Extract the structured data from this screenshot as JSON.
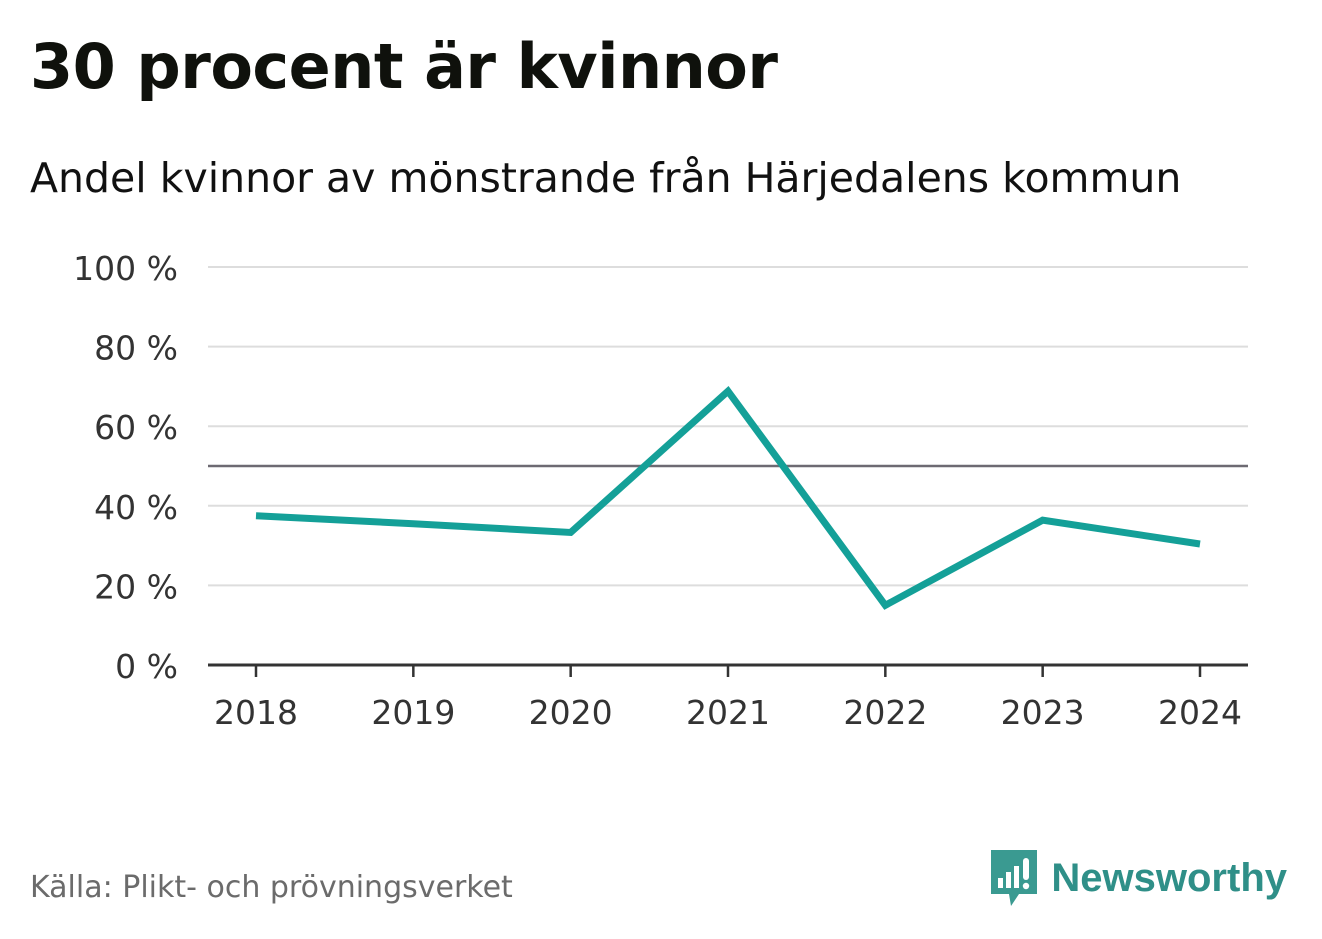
{
  "title": "30 procent är kvinnor",
  "subtitle": "Andel kvinnor av mönstrande från Härjedalens kommun",
  "source": "Källa: Plikt- och prövningsverket",
  "brand": {
    "name": "Newsworthy",
    "icon": "newsworthy-logo-icon",
    "color": "#2f8f88"
  },
  "colors": {
    "series": "#14a098",
    "reference_line": "#6d6a72",
    "grid": "#dddddd",
    "axis": "#333333"
  },
  "chart_data": {
    "type": "line",
    "x": [
      "2018",
      "2019",
      "2020",
      "2021",
      "2022",
      "2023",
      "2024"
    ],
    "series": [
      {
        "values": [
          37.5,
          35.5,
          33.3,
          68.8,
          15.0,
          36.4,
          30.4
        ]
      }
    ],
    "reference_line": 50,
    "ylim": [
      0,
      100
    ],
    "yticks": [
      0,
      20,
      40,
      60,
      80,
      100
    ],
    "ytick_labels": [
      "0 %",
      "20 %",
      "40 %",
      "60 %",
      "80 %",
      "100 %"
    ],
    "xlabel": "",
    "ylabel": "",
    "grid": true,
    "legend": false
  }
}
